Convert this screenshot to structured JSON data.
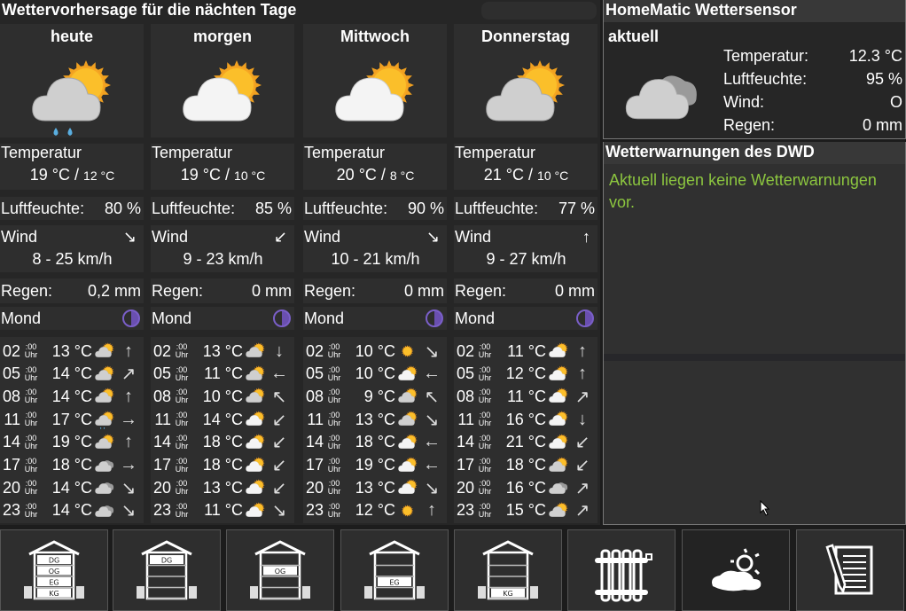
{
  "forecast": {
    "title": "Wettervorhersage für die nächten Tage",
    "temp_label": "Temperatur",
    "hum_label": "Luftfeuchte:",
    "wind_label": "Wind",
    "rain_label": "Regen:",
    "moon_label": "Mond",
    "uhr_min": ":00",
    "uhr_label": "Uhr",
    "days": [
      {
        "name": "heute",
        "icon": "partly-cloudy-rain",
        "temp_max": "19 °C /",
        "temp_min": "12 °C",
        "humidity": "80 %",
        "wind_dir": "↘",
        "wind": "8 - 25 km/h",
        "rain": "0,2 mm",
        "moon": "half-moon-icon",
        "hours": [
          [
            "02",
            "13 °C",
            "partly-cloudy",
            "↑"
          ],
          [
            "05",
            "14 °C",
            "partly-cloudy",
            "↗"
          ],
          [
            "08",
            "14 °C",
            "partly-cloudy",
            "↑"
          ],
          [
            "11",
            "17 °C",
            "partly-cloudy-rain",
            "→"
          ],
          [
            "14",
            "19 °C",
            "partly-cloudy",
            "↑"
          ],
          [
            "17",
            "18 °C",
            "cloudy",
            "→"
          ],
          [
            "20",
            "14 °C",
            "cloudy",
            "↘"
          ],
          [
            "23",
            "14 °C",
            "cloudy",
            "↘"
          ]
        ]
      },
      {
        "name": "morgen",
        "icon": "partly-cloudy-white",
        "temp_max": "19 °C /",
        "temp_min": "10 °C",
        "humidity": "85 %",
        "wind_dir": "↙",
        "wind": "9 - 23 km/h",
        "rain": "0 mm",
        "moon": "half-moon-icon",
        "hours": [
          [
            "02",
            "13 °C",
            "partly-cloudy",
            "↓"
          ],
          [
            "05",
            "11 °C",
            "partly-cloudy",
            "←"
          ],
          [
            "08",
            "10 °C",
            "partly-cloudy",
            "↖"
          ],
          [
            "11",
            "14 °C",
            "partly-cloudy-white",
            "↙"
          ],
          [
            "14",
            "18 °C",
            "partly-cloudy-white",
            "↙"
          ],
          [
            "17",
            "18 °C",
            "partly-cloudy-white",
            "↙"
          ],
          [
            "20",
            "13 °C",
            "partly-cloudy-white",
            "↙"
          ],
          [
            "23",
            "11 °C",
            "partly-cloudy-white",
            "↘"
          ]
        ]
      },
      {
        "name": "Mittwoch",
        "icon": "partly-cloudy-white",
        "temp_max": "20 °C /",
        "temp_min": "8 °C",
        "humidity": "90 %",
        "wind_dir": "↘",
        "wind": "10 - 21 km/h",
        "rain": "0 mm",
        "moon": "half-moon-icon",
        "hours": [
          [
            "02",
            "10 °C",
            "sunny",
            "↘"
          ],
          [
            "05",
            "10 °C",
            "partly-cloudy-white",
            "←"
          ],
          [
            "08",
            "9 °C",
            "partly-cloudy",
            "↖"
          ],
          [
            "11",
            "13 °C",
            "partly-cloudy",
            "↘"
          ],
          [
            "14",
            "18 °C",
            "partly-cloudy-white",
            "←"
          ],
          [
            "17",
            "19 °C",
            "partly-cloudy-white",
            "←"
          ],
          [
            "20",
            "13 °C",
            "partly-cloudy-white",
            "↘"
          ],
          [
            "23",
            "12 °C",
            "sunny",
            "↑"
          ]
        ]
      },
      {
        "name": "Donnerstag",
        "icon": "partly-cloudy",
        "temp_max": "21 °C /",
        "temp_min": "10 °C",
        "humidity": "77 %",
        "wind_dir": "↑",
        "wind": "9 - 27 km/h",
        "rain": "0 mm",
        "moon": "half-moon-icon",
        "hours": [
          [
            "02",
            "11 °C",
            "partly-cloudy-white",
            "↑"
          ],
          [
            "05",
            "12 °C",
            "partly-cloudy-white",
            "↑"
          ],
          [
            "08",
            "11 °C",
            "partly-cloudy-white",
            "↗"
          ],
          [
            "11",
            "16 °C",
            "partly-cloudy-white",
            "↓"
          ],
          [
            "14",
            "21 °C",
            "partly-cloudy-white",
            "↙"
          ],
          [
            "17",
            "18 °C",
            "partly-cloudy",
            "↙"
          ],
          [
            "20",
            "16 °C",
            "cloudy",
            "↗"
          ],
          [
            "23",
            "15 °C",
            "partly-cloudy",
            "↗"
          ]
        ]
      }
    ]
  },
  "sensor": {
    "title": "HomeMatic Wettersensor",
    "subtitle": "aktuell",
    "icon": "cloudy",
    "rows": [
      {
        "label": "Temperatur:",
        "value": "12.3 °C"
      },
      {
        "label": "Luftfeuchte:",
        "value": "95 %"
      },
      {
        "label": "Wind:",
        "value": "O"
      },
      {
        "label": "Regen:",
        "value": "0 mm"
      }
    ]
  },
  "warnings": {
    "title": "Wetterwarnungen des DWD",
    "text": "Aktuell liegen keine Wetterwarnungen vor.",
    "color": "#8cc63f"
  },
  "nav": [
    {
      "icon": "house-all-floors-icon",
      "labels": [
        "DG",
        "OG",
        "EG",
        "KG"
      ],
      "active": false
    },
    {
      "icon": "house-dg-icon",
      "labels": [
        "DG"
      ],
      "active": false
    },
    {
      "icon": "house-og-icon",
      "labels": [
        "OG"
      ],
      "active": false
    },
    {
      "icon": "house-eg-icon",
      "labels": [
        "EG"
      ],
      "active": false
    },
    {
      "icon": "house-kg-icon",
      "labels": [
        "KG"
      ],
      "active": false
    },
    {
      "icon": "radiator-icon",
      "active": false
    },
    {
      "icon": "weather-icon",
      "active": true
    },
    {
      "icon": "notes-icon",
      "active": false
    }
  ]
}
